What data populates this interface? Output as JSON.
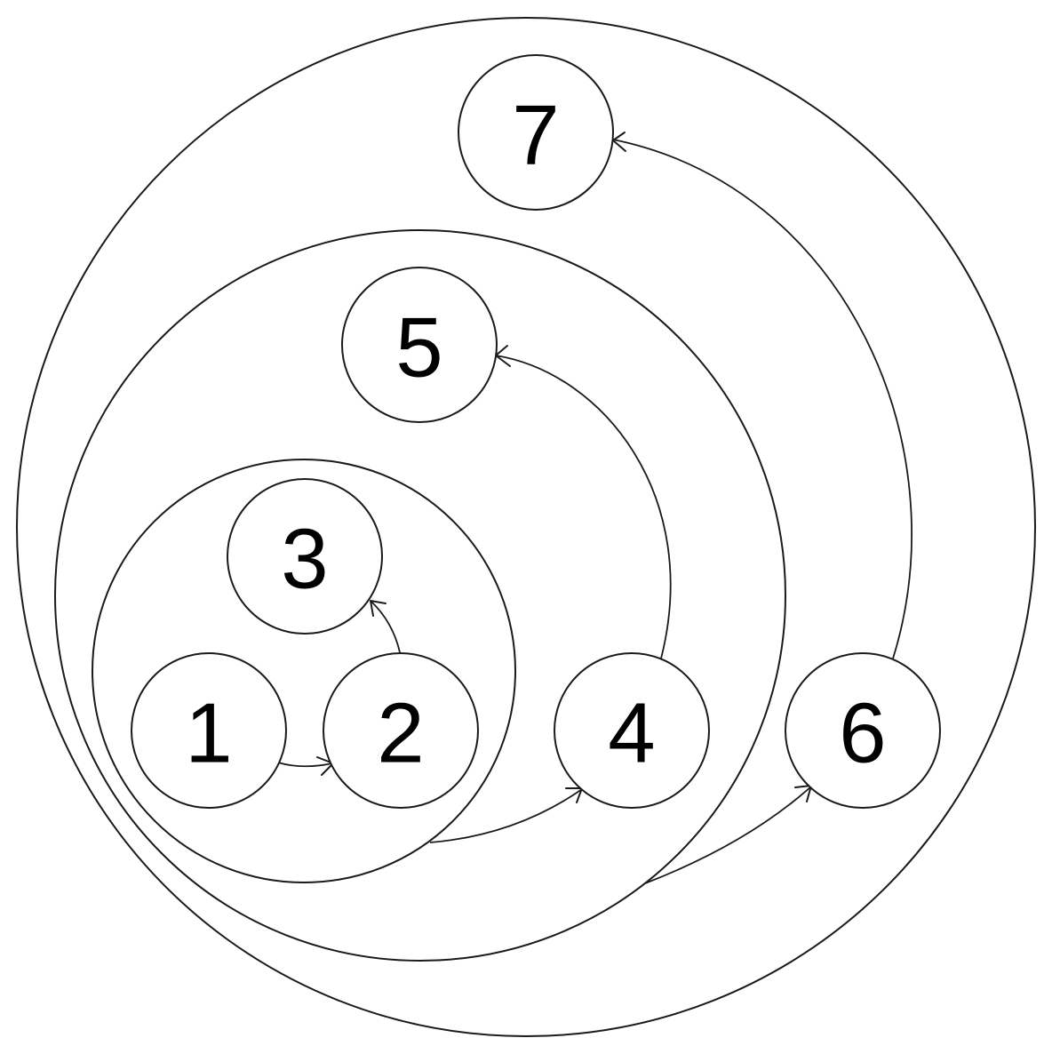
{
  "nodes": [
    {
      "id": "1",
      "label": "1"
    },
    {
      "id": "2",
      "label": "2"
    },
    {
      "id": "3",
      "label": "3"
    },
    {
      "id": "4",
      "label": "4"
    },
    {
      "id": "5",
      "label": "5"
    },
    {
      "id": "6",
      "label": "6"
    },
    {
      "id": "7",
      "label": "7"
    }
  ],
  "edges": [
    {
      "from": "1",
      "to": "2"
    },
    {
      "from": "2",
      "to": "3"
    },
    {
      "from": "group-1-2-3",
      "to": "4"
    },
    {
      "from": "4",
      "to": "5"
    },
    {
      "from": "group-1-5",
      "to": "6"
    },
    {
      "from": "6",
      "to": "7"
    }
  ],
  "colors": {
    "stroke": "#1a1a1a",
    "text": "#000000",
    "background": "#ffffff"
  }
}
